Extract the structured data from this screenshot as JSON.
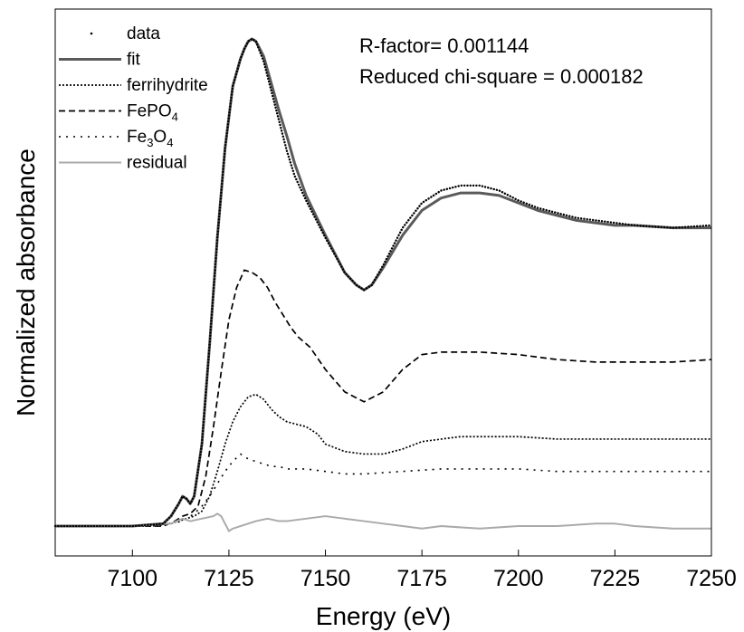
{
  "chart_data": {
    "type": "line",
    "xlabel": "Energy (eV)",
    "ylabel": "Normalized absorbance",
    "xlim": [
      7080,
      7250
    ],
    "ylim": [
      -0.12,
      2.08
    ],
    "x_ticks": [
      7100,
      7125,
      7150,
      7175,
      7200,
      7225,
      7250
    ],
    "y_ticks_shown": false,
    "grid": false,
    "legend_position": "top-left",
    "annotations": [
      {
        "text": "R-factor= 0.001144"
      },
      {
        "text": "Reduced chi-square = 0.000182"
      }
    ],
    "series": [
      {
        "name": "data",
        "style": "dots",
        "color": "#000000",
        "points": [
          [
            7080,
            0.0
          ],
          [
            7100,
            0.0
          ],
          [
            7108,
            0.01
          ],
          [
            7110,
            0.04
          ],
          [
            7112,
            0.09
          ],
          [
            7113,
            0.12
          ],
          [
            7114,
            0.11
          ],
          [
            7115,
            0.09
          ],
          [
            7116,
            0.12
          ],
          [
            7118,
            0.33
          ],
          [
            7120,
            0.73
          ],
          [
            7122,
            1.16
          ],
          [
            7124,
            1.52
          ],
          [
            7126,
            1.77
          ],
          [
            7128,
            1.88
          ],
          [
            7129,
            1.92
          ],
          [
            7130,
            1.95
          ],
          [
            7131,
            1.96
          ],
          [
            7132,
            1.95
          ],
          [
            7134,
            1.87
          ],
          [
            7136,
            1.75
          ],
          [
            7138,
            1.63
          ],
          [
            7140,
            1.51
          ],
          [
            7142,
            1.41
          ],
          [
            7145,
            1.31
          ],
          [
            7150,
            1.16
          ],
          [
            7155,
            1.02
          ],
          [
            7158,
            0.97
          ],
          [
            7160,
            0.95
          ],
          [
            7162,
            0.97
          ],
          [
            7165,
            1.05
          ],
          [
            7170,
            1.2
          ],
          [
            7175,
            1.3
          ],
          [
            7180,
            1.35
          ],
          [
            7185,
            1.37
          ],
          [
            7190,
            1.37
          ],
          [
            7195,
            1.35
          ],
          [
            7200,
            1.31
          ],
          [
            7205,
            1.28
          ],
          [
            7210,
            1.26
          ],
          [
            7215,
            1.24
          ],
          [
            7220,
            1.23
          ],
          [
            7225,
            1.22
          ],
          [
            7230,
            1.21
          ],
          [
            7240,
            1.2
          ],
          [
            7250,
            1.21
          ]
        ]
      },
      {
        "name": "fit",
        "style": "solid-thick",
        "color": "#5a5a5a",
        "points": [
          [
            7080,
            0.0
          ],
          [
            7100,
            0.0
          ],
          [
            7108,
            0.01
          ],
          [
            7110,
            0.04
          ],
          [
            7112,
            0.09
          ],
          [
            7113,
            0.12
          ],
          [
            7114,
            0.11
          ],
          [
            7115,
            0.09
          ],
          [
            7116,
            0.12
          ],
          [
            7118,
            0.33
          ],
          [
            7120,
            0.73
          ],
          [
            7122,
            1.16
          ],
          [
            7124,
            1.52
          ],
          [
            7126,
            1.77
          ],
          [
            7128,
            1.88
          ],
          [
            7129,
            1.92
          ],
          [
            7130,
            1.95
          ],
          [
            7131,
            1.96
          ],
          [
            7132,
            1.95
          ],
          [
            7134,
            1.89
          ],
          [
            7136,
            1.78
          ],
          [
            7138,
            1.67
          ],
          [
            7140,
            1.57
          ],
          [
            7142,
            1.46
          ],
          [
            7145,
            1.33
          ],
          [
            7150,
            1.17
          ],
          [
            7155,
            1.02
          ],
          [
            7158,
            0.97
          ],
          [
            7160,
            0.95
          ],
          [
            7162,
            0.97
          ],
          [
            7165,
            1.04
          ],
          [
            7170,
            1.17
          ],
          [
            7175,
            1.27
          ],
          [
            7180,
            1.32
          ],
          [
            7185,
            1.34
          ],
          [
            7190,
            1.34
          ],
          [
            7195,
            1.33
          ],
          [
            7200,
            1.3
          ],
          [
            7205,
            1.27
          ],
          [
            7210,
            1.25
          ],
          [
            7215,
            1.23
          ],
          [
            7220,
            1.22
          ],
          [
            7225,
            1.21
          ],
          [
            7230,
            1.21
          ],
          [
            7240,
            1.2
          ],
          [
            7250,
            1.2
          ]
        ]
      },
      {
        "name": "ferrihydrite",
        "style": "dotted",
        "color": "#000000",
        "points": [
          [
            7080,
            0.0
          ],
          [
            7105,
            0.0
          ],
          [
            7110,
            0.01
          ],
          [
            7112,
            0.02
          ],
          [
            7114,
            0.03
          ],
          [
            7116,
            0.04
          ],
          [
            7118,
            0.06
          ],
          [
            7120,
            0.12
          ],
          [
            7122,
            0.22
          ],
          [
            7124,
            0.33
          ],
          [
            7126,
            0.42
          ],
          [
            7128,
            0.48
          ],
          [
            7130,
            0.52
          ],
          [
            7132,
            0.53
          ],
          [
            7134,
            0.51
          ],
          [
            7136,
            0.47
          ],
          [
            7138,
            0.44
          ],
          [
            7140,
            0.42
          ],
          [
            7145,
            0.4
          ],
          [
            7148,
            0.37
          ],
          [
            7150,
            0.33
          ],
          [
            7155,
            0.3
          ],
          [
            7160,
            0.29
          ],
          [
            7165,
            0.29
          ],
          [
            7170,
            0.31
          ],
          [
            7175,
            0.34
          ],
          [
            7180,
            0.35
          ],
          [
            7185,
            0.36
          ],
          [
            7190,
            0.36
          ],
          [
            7200,
            0.36
          ],
          [
            7210,
            0.35
          ],
          [
            7220,
            0.35
          ],
          [
            7230,
            0.35
          ],
          [
            7240,
            0.35
          ],
          [
            7250,
            0.35
          ]
        ]
      },
      {
        "name": "FePO",
        "name_subscript": "4",
        "style": "dashed",
        "color": "#000000",
        "points": [
          [
            7080,
            0.0
          ],
          [
            7108,
            0.0
          ],
          [
            7111,
            0.02
          ],
          [
            7113,
            0.04
          ],
          [
            7115,
            0.05
          ],
          [
            7117,
            0.08
          ],
          [
            7119,
            0.2
          ],
          [
            7121,
            0.4
          ],
          [
            7123,
            0.62
          ],
          [
            7125,
            0.83
          ],
          [
            7127,
            0.96
          ],
          [
            7129,
            1.03
          ],
          [
            7131,
            1.02
          ],
          [
            7133,
            1.0
          ],
          [
            7135,
            0.96
          ],
          [
            7137,
            0.9
          ],
          [
            7139,
            0.85
          ],
          [
            7141,
            0.8
          ],
          [
            7143,
            0.76
          ],
          [
            7146,
            0.72
          ],
          [
            7150,
            0.63
          ],
          [
            7155,
            0.54
          ],
          [
            7160,
            0.5
          ],
          [
            7165,
            0.54
          ],
          [
            7170,
            0.63
          ],
          [
            7175,
            0.69
          ],
          [
            7180,
            0.7
          ],
          [
            7190,
            0.7
          ],
          [
            7200,
            0.69
          ],
          [
            7210,
            0.67
          ],
          [
            7220,
            0.66
          ],
          [
            7230,
            0.66
          ],
          [
            7240,
            0.66
          ],
          [
            7250,
            0.67
          ]
        ]
      },
      {
        "name": "Fe",
        "name_subscript": "3",
        "name_suffix": "O",
        "name_suffix_subscript": "4",
        "style": "dash-dot",
        "color": "#000000",
        "points": [
          [
            7080,
            0.0
          ],
          [
            7105,
            0.0
          ],
          [
            7110,
            0.01
          ],
          [
            7113,
            0.02
          ],
          [
            7116,
            0.05
          ],
          [
            7118,
            0.08
          ],
          [
            7120,
            0.12
          ],
          [
            7122,
            0.17
          ],
          [
            7124,
            0.22
          ],
          [
            7126,
            0.26
          ],
          [
            7128,
            0.29
          ],
          [
            7130,
            0.27
          ],
          [
            7132,
            0.26
          ],
          [
            7134,
            0.25
          ],
          [
            7136,
            0.24
          ],
          [
            7138,
            0.24
          ],
          [
            7140,
            0.23
          ],
          [
            7145,
            0.23
          ],
          [
            7150,
            0.22
          ],
          [
            7155,
            0.21
          ],
          [
            7160,
            0.21
          ],
          [
            7170,
            0.22
          ],
          [
            7180,
            0.23
          ],
          [
            7190,
            0.23
          ],
          [
            7200,
            0.23
          ],
          [
            7210,
            0.22
          ],
          [
            7220,
            0.22
          ],
          [
            7230,
            0.22
          ],
          [
            7240,
            0.22
          ],
          [
            7250,
            0.22
          ]
        ]
      },
      {
        "name": "residual",
        "style": "solid",
        "color": "#aaaaaa",
        "points": [
          [
            7080,
            0.0
          ],
          [
            7100,
            0.0
          ],
          [
            7110,
            0.01
          ],
          [
            7113,
            0.03
          ],
          [
            7115,
            0.02
          ],
          [
            7118,
            0.03
          ],
          [
            7121,
            0.04
          ],
          [
            7122,
            0.05
          ],
          [
            7123,
            0.04
          ],
          [
            7124,
            0.01
          ],
          [
            7125,
            -0.02
          ],
          [
            7126,
            -0.01
          ],
          [
            7128,
            0.0
          ],
          [
            7130,
            0.01
          ],
          [
            7132,
            0.02
          ],
          [
            7135,
            0.03
          ],
          [
            7138,
            0.02
          ],
          [
            7140,
            0.02
          ],
          [
            7145,
            0.03
          ],
          [
            7150,
            0.04
          ],
          [
            7155,
            0.03
          ],
          [
            7160,
            0.02
          ],
          [
            7165,
            0.01
          ],
          [
            7170,
            0.0
          ],
          [
            7175,
            -0.01
          ],
          [
            7180,
            0.0
          ],
          [
            7190,
            -0.01
          ],
          [
            7200,
            0.0
          ],
          [
            7210,
            0.0
          ],
          [
            7220,
            0.01
          ],
          [
            7225,
            0.01
          ],
          [
            7230,
            0.0
          ],
          [
            7240,
            -0.01
          ],
          [
            7250,
            -0.01
          ]
        ]
      }
    ]
  }
}
